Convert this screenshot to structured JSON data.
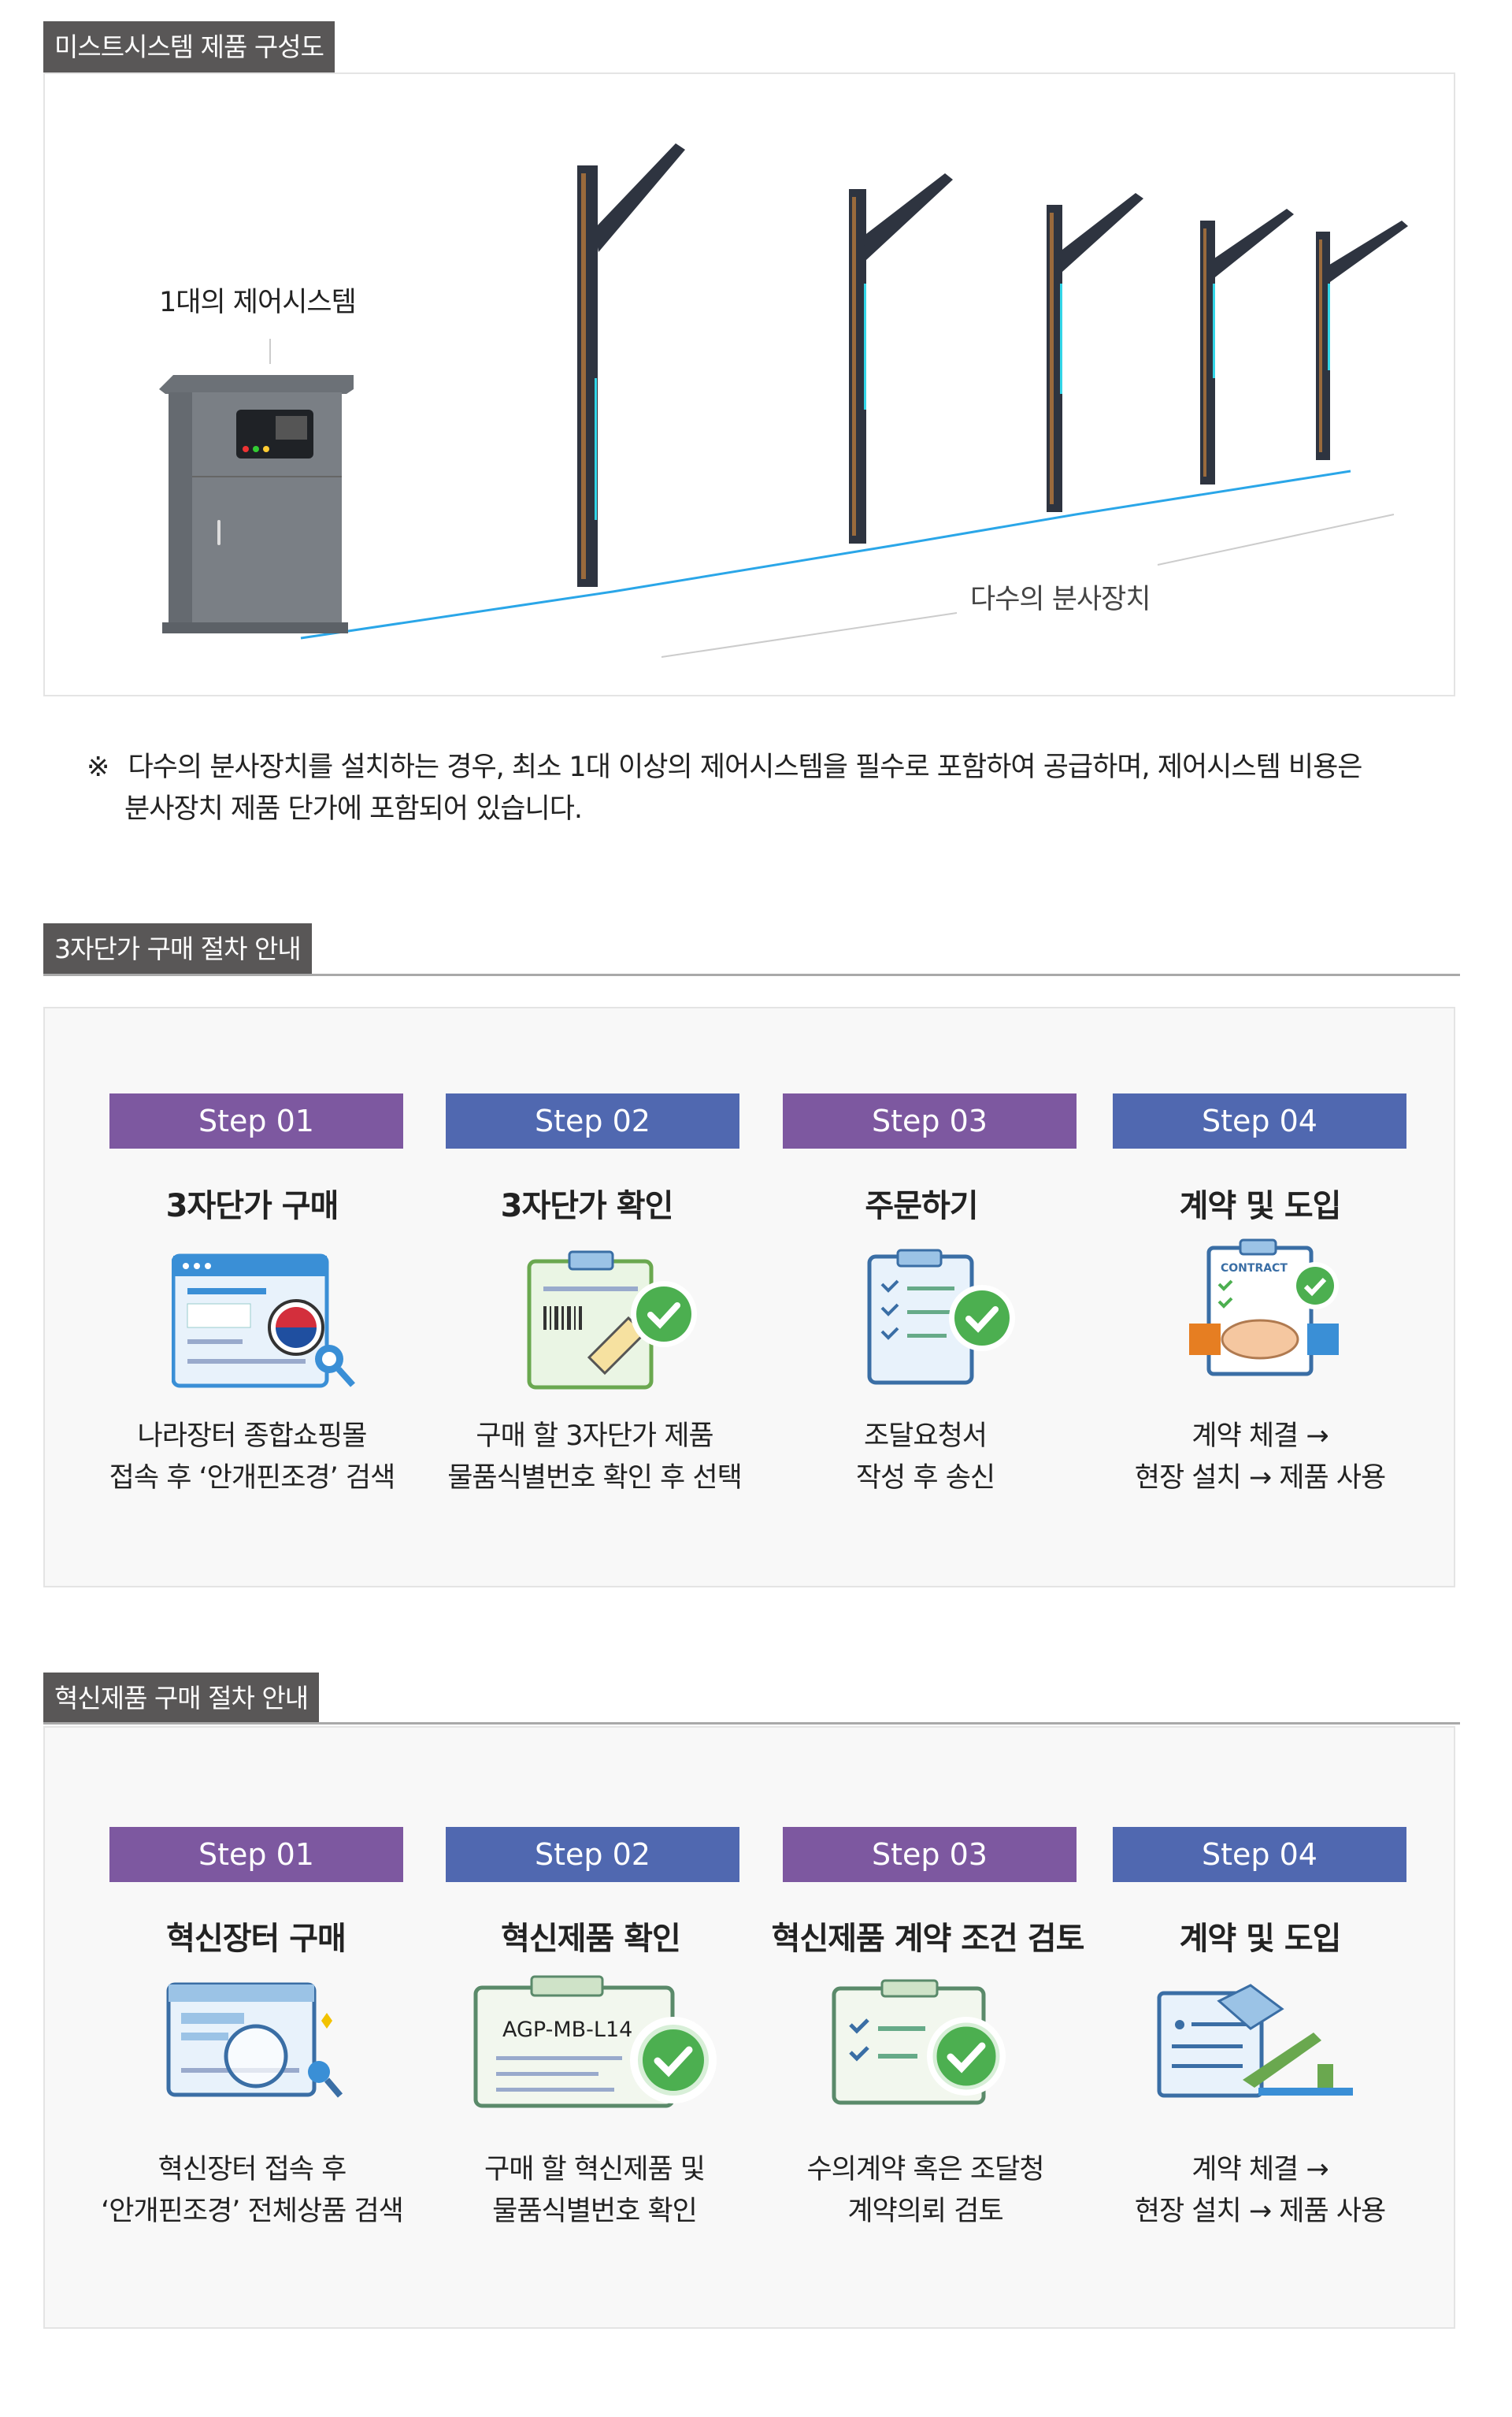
{
  "section1": {
    "header": "미스트시스템 제품 구성도",
    "control_label": "1대의 제어시스템",
    "nozzle_label": "다수의 분사장치",
    "note_mark": "※",
    "note_line1": "다수의 분사장치를 설치하는 경우, 최소 1대 이상의 제어시스템을 필수로 포함하여 공급하며, 제어시스템 비용은",
    "note_line2": "분사장치 제품 단가에 포함되어 있습니다."
  },
  "section2": {
    "header": "3자단가 구매 절차 안내",
    "steps": [
      {
        "label": "Step 01",
        "title": "3자단가 구매",
        "desc1": "나라장터 종합쇼핑몰",
        "desc2": "접속 후 ‘안개핀조경’ 검색",
        "icon": "shopping-mall-search-icon"
      },
      {
        "label": "Step 02",
        "title": "3자단가 확인",
        "desc1": "구매 할 3자단가 제품",
        "desc2": "물품식별번호 확인 후 선택",
        "icon": "barcode-check-icon"
      },
      {
        "label": "Step 03",
        "title": "주문하기",
        "desc1": "조달요청서",
        "desc2": "작성 후 송신",
        "icon": "checklist-check-icon"
      },
      {
        "label": "Step 04",
        "title": "계약 및 도입",
        "desc1": "계약 체결 →",
        "desc2": "현장 설치 → 제품 사용",
        "icon": "contract-handshake-icon",
        "icon_text": "CONTRACT"
      }
    ]
  },
  "section3": {
    "header": "혁신제품 구매 절차 안내",
    "steps": [
      {
        "label": "Step 01",
        "title": "혁신장터 구매",
        "desc1": "혁신장터 접속 후",
        "desc2": "‘안개핀조경’ 전체상품 검색",
        "icon": "browser-search-icon"
      },
      {
        "label": "Step 02",
        "title": "혁신제품 확인",
        "desc1": "구매 할 혁신제품 및",
        "desc2": "물품식별번호 확인",
        "icon": "product-id-check-icon",
        "icon_text": "AGP-MB-L14"
      },
      {
        "label": "Step 03",
        "title": "혁신제품 계약 조건 검토",
        "desc1": "수의계약 혹은 조달청",
        "desc2": "계약의뢰 검토",
        "icon": "clipboard-check-icon"
      },
      {
        "label": "Step 04",
        "title": "계약 및 도입",
        "desc1": "계약 체결 →",
        "desc2": "현장 설치 → 제품 사용",
        "icon": "contract-handshake-icon"
      }
    ]
  },
  "colors": {
    "header_bg": "#595757",
    "step_purple": "#7d58a0",
    "step_blue": "#5068b0",
    "pipe": "#2aa6e8"
  }
}
